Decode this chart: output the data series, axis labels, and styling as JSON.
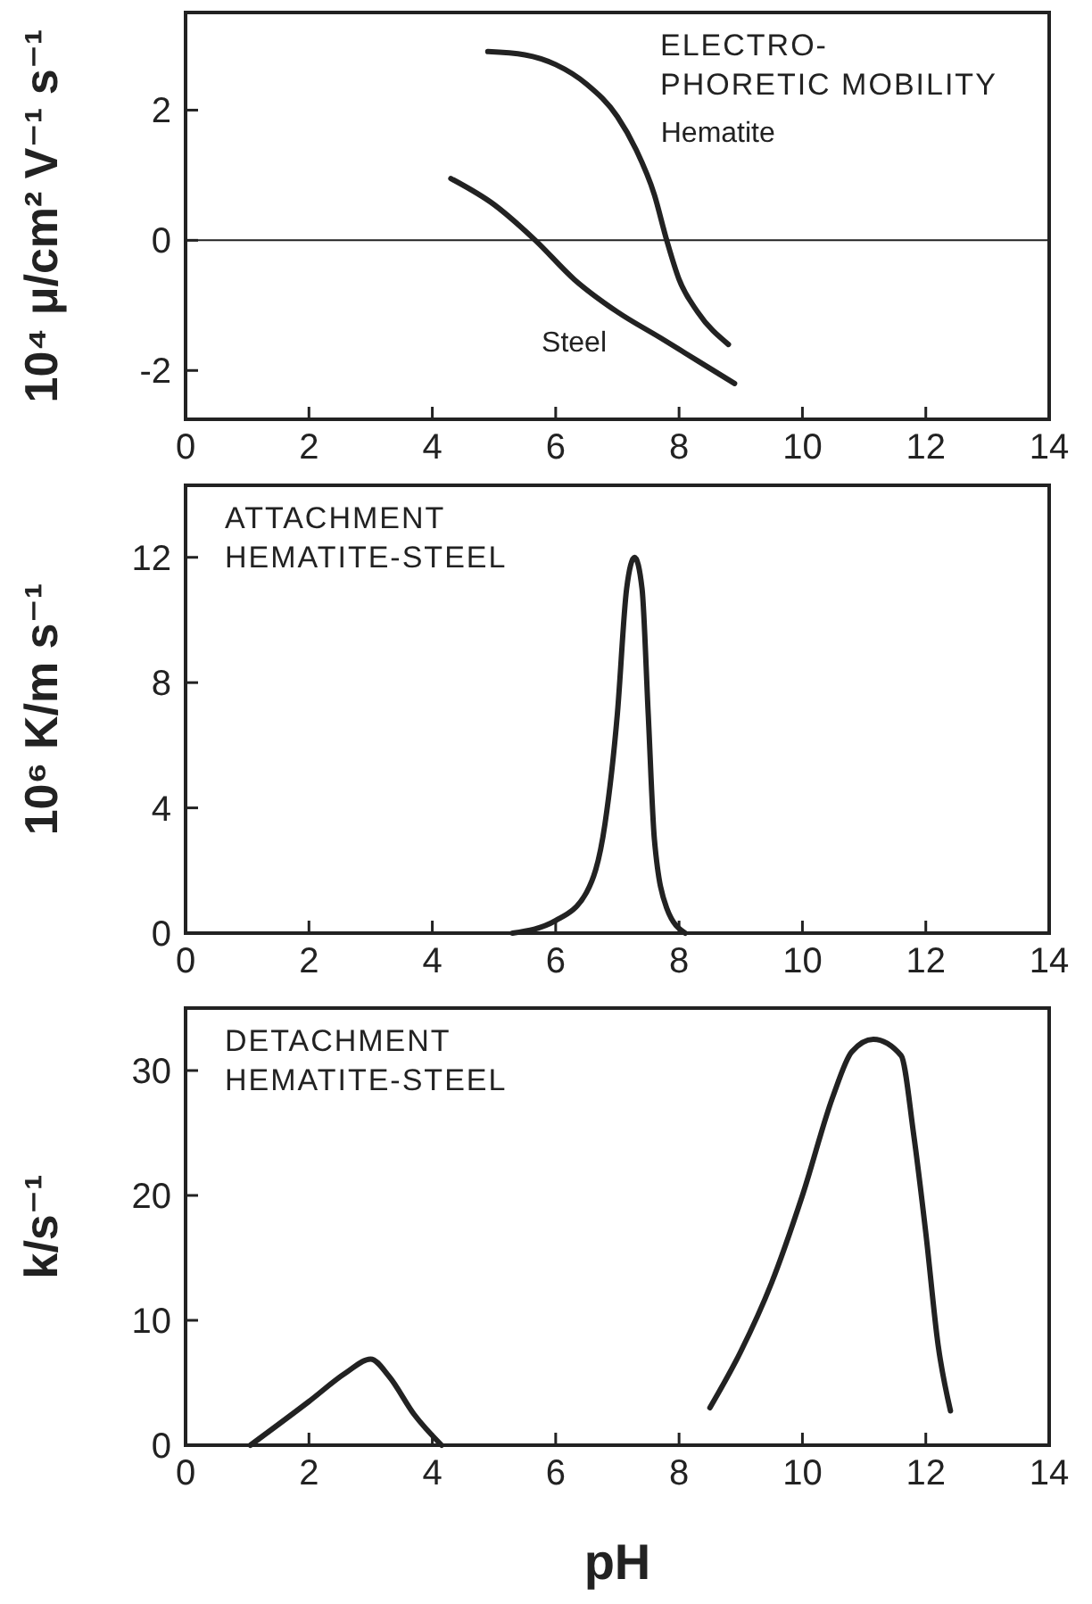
{
  "chart_data": [
    {
      "type": "line",
      "title": "ELECTRO-\nPHORETIC MOBILITY",
      "ylabel": "10⁴ μ/cm² V⁻¹ s⁻¹",
      "xlim": [
        0,
        14
      ],
      "xticks": [
        0,
        2,
        4,
        6,
        8,
        10,
        12,
        14
      ],
      "ylim": [
        -2.75,
        3.5
      ],
      "yticks": [
        -2,
        0,
        2
      ],
      "ref_lines": [
        {
          "axis": "y",
          "value": 0
        }
      ],
      "color": "#222222",
      "series": [
        {
          "name": "Hematite",
          "x": [
            4.9,
            5.5,
            6,
            6.5,
            7,
            7.3,
            7.6,
            7.8,
            8,
            8.3,
            8.8
          ],
          "values": [
            2.9,
            2.85,
            2.7,
            2.4,
            1.9,
            1.4,
            0.7,
            0,
            -0.6,
            -1.1,
            -1.6
          ]
        },
        {
          "name": "Steel",
          "x": [
            4.3,
            5,
            5.67,
            6.3,
            7,
            7.7,
            8.3,
            8.9
          ],
          "values": [
            0.95,
            0.55,
            0,
            -0.6,
            -1.1,
            -1.5,
            -1.85,
            -2.2
          ]
        }
      ]
    },
    {
      "type": "line",
      "title": "ATTACHMENT\nHEMATITE-STEEL",
      "ylabel": "10⁶ K/m s⁻¹",
      "xlim": [
        0,
        14
      ],
      "xticks": [
        0,
        2,
        4,
        6,
        8,
        10,
        12,
        14
      ],
      "ylim": [
        0,
        14.3
      ],
      "yticks": [
        0,
        4,
        8,
        12
      ],
      "color": "#222222",
      "series": [
        {
          "x": [
            5.3,
            6,
            6.5,
            6.8,
            7,
            7.15,
            7.28,
            7.4,
            7.5,
            7.6,
            7.8,
            8.1
          ],
          "values": [
            0,
            0.4,
            1.3,
            3.5,
            7,
            11,
            12,
            11,
            7,
            3,
            0.8,
            0
          ]
        }
      ]
    },
    {
      "type": "line",
      "title": "DETACHMENT\nHEMATITE-STEEL",
      "xlabel": "pH",
      "ylabel": "k/s⁻¹",
      "xlim": [
        0,
        14
      ],
      "xticks": [
        0,
        2,
        4,
        6,
        8,
        10,
        12,
        14
      ],
      "ylim": [
        0,
        35
      ],
      "yticks": [
        0,
        10,
        20,
        30
      ],
      "color": "#222222",
      "series": [
        {
          "x": [
            1.05,
            2,
            2.6,
            3,
            3.3,
            3.7,
            4.15
          ],
          "values": [
            0,
            3.5,
            5.8,
            6.9,
            5.5,
            2.5,
            0
          ]
        },
        {
          "x": [
            8.5,
            9,
            9.5,
            10,
            10.5,
            10.8,
            11.15,
            11.6,
            11.8,
            12,
            12.2,
            12.4
          ],
          "values": [
            3,
            7.5,
            13,
            20,
            28,
            31.5,
            32.5,
            31.2,
            25,
            17,
            8,
            2.75
          ]
        }
      ]
    }
  ]
}
